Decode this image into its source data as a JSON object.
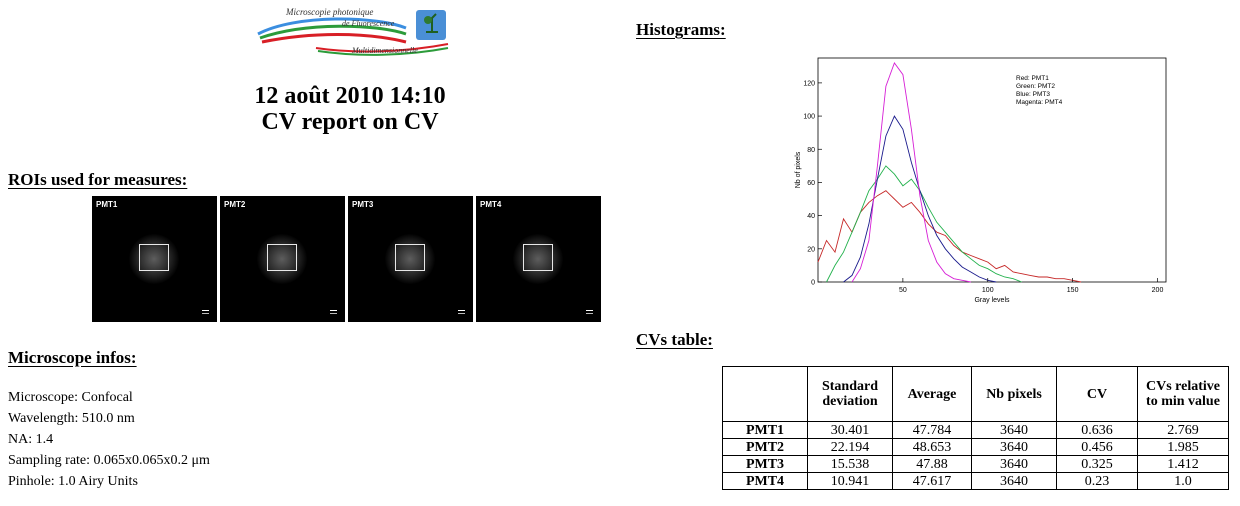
{
  "logo": {
    "line1": "Microscopie photonique",
    "line2": "de Fluorescence",
    "line3": "Multidimensionnelle"
  },
  "report": {
    "date": "12 août 2010 14:10",
    "title": "CV report on CV"
  },
  "roi_section": {
    "heading": "ROIs used for measures:",
    "tiles": [
      {
        "label": "PMT1"
      },
      {
        "label": "PMT2"
      },
      {
        "label": "PMT3"
      },
      {
        "label": "PMT4"
      }
    ]
  },
  "microscope": {
    "heading": "Microscope infos:",
    "lines": [
      "Microscope: Confocal",
      "Wavelength: 510.0 nm",
      "NA: 1.4",
      "Sampling rate: 0.065x0.065x0.2 μm",
      "Pinhole: 1.0 Airy Units"
    ]
  },
  "histogram_section": {
    "heading": "Histograms:"
  },
  "cv_section": {
    "heading": "CVs table:",
    "columns": [
      "",
      "Standard deviation",
      "Average",
      "Nb pixels",
      "CV",
      "CVs relative to min value"
    ],
    "rows": [
      {
        "name": "PMT1",
        "values": [
          "30.401",
          "47.784",
          "3640",
          "0.636",
          "2.769"
        ]
      },
      {
        "name": "PMT2",
        "values": [
          "22.194",
          "48.653",
          "3640",
          "0.456",
          "1.985"
        ]
      },
      {
        "name": "PMT3",
        "values": [
          "15.538",
          "47.88",
          "3640",
          "0.325",
          "1.412"
        ]
      },
      {
        "name": "PMT4",
        "values": [
          "10.941",
          "47.617",
          "3640",
          "0.23",
          "1.0"
        ]
      }
    ]
  },
  "chart_data": {
    "type": "line",
    "title": "",
    "xlabel": "Gray levels",
    "ylabel": "Nb of pixels",
    "xlim": [
      0,
      205
    ],
    "ylim": [
      0,
      135
    ],
    "xticks": [
      50,
      100,
      150,
      200
    ],
    "yticks": [
      0,
      20,
      40,
      60,
      80,
      100,
      120
    ],
    "grid": false,
    "legend_position": "top-right",
    "series": [
      {
        "name": "Red: PMT1",
        "color": "#c62828",
        "x": [
          0,
          5,
          10,
          15,
          20,
          25,
          30,
          35,
          40,
          45,
          50,
          55,
          60,
          65,
          70,
          75,
          80,
          85,
          90,
          95,
          100,
          105,
          110,
          115,
          120,
          125,
          130,
          135,
          140,
          145,
          150,
          155
        ],
        "y": [
          12,
          25,
          18,
          38,
          30,
          42,
          48,
          52,
          55,
          50,
          45,
          48,
          42,
          35,
          30,
          28,
          22,
          18,
          16,
          14,
          12,
          8,
          10,
          6,
          5,
          4,
          3,
          3,
          2,
          2,
          1,
          0
        ]
      },
      {
        "name": "Green: PMT2",
        "color": "#22b14c",
        "x": [
          5,
          10,
          15,
          20,
          25,
          30,
          35,
          40,
          45,
          50,
          55,
          60,
          65,
          70,
          75,
          80,
          85,
          90,
          95,
          100,
          105,
          110,
          115,
          120
        ],
        "y": [
          0,
          10,
          18,
          30,
          42,
          55,
          62,
          70,
          65,
          58,
          62,
          55,
          45,
          36,
          30,
          24,
          18,
          14,
          10,
          8,
          5,
          3,
          2,
          0
        ]
      },
      {
        "name": "Blue: PMT3",
        "color": "#1a1a8c",
        "x": [
          15,
          20,
          25,
          30,
          35,
          40,
          45,
          50,
          55,
          60,
          65,
          70,
          75,
          80,
          85,
          90,
          95,
          100,
          105
        ],
        "y": [
          0,
          4,
          15,
          35,
          62,
          88,
          100,
          92,
          72,
          55,
          40,
          28,
          20,
          14,
          9,
          6,
          3,
          1,
          0
        ]
      },
      {
        "name": "Magenta: PMT4",
        "color": "#d61fd6",
        "x": [
          20,
          25,
          30,
          35,
          40,
          45,
          50,
          55,
          60,
          65,
          70,
          75,
          80,
          85,
          90
        ],
        "y": [
          0,
          8,
          25,
          70,
          118,
          132,
          125,
          92,
          52,
          25,
          12,
          5,
          2,
          1,
          0
        ]
      }
    ]
  }
}
